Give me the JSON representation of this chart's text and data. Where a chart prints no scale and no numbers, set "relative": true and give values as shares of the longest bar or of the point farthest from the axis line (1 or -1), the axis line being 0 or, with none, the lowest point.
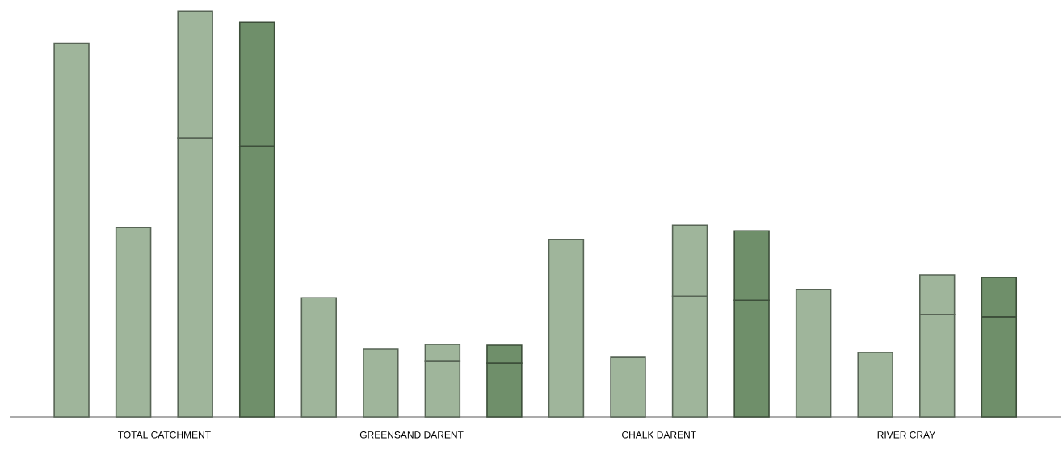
{
  "chart_data": {
    "type": "bar",
    "relative": true,
    "stacked": true,
    "categories": [
      null,
      null,
      null,
      null,
      null,
      null,
      null,
      null,
      null,
      null,
      null,
      null,
      null,
      null,
      null,
      null
    ],
    "annotations": [
      "TOTAL  CATCHMENT",
      "GREENSAND  DARENT",
      "CHALK  DARENT",
      "RIVER  CRAY"
    ],
    "series": [
      {
        "colors": [
          "#9fb59b",
          "#9fb59b",
          "#9fb59b",
          "#6f8f6a",
          "#9fb59b",
          "#9fb59b",
          "#9fb59b",
          "#6f8f6a",
          "#9fb59b",
          "#9fb59b",
          "#9fb59b",
          "#6f8f6a",
          "#9fb59b",
          "#9fb59b",
          "#9fb59b",
          "#6f8f6a"
        ],
        "values": [
          0.922,
          0.467,
          0.688,
          0.668,
          0.294,
          0.167,
          0.137,
          0.133,
          0.437,
          0.147,
          0.298,
          0.288,
          0.314,
          0.159,
          0.252,
          0.247
        ]
      },
      {
        "colors": [
          "#9fb59b",
          "#9fb59b",
          "#9fb59b",
          "#6f8f6a",
          "#9fb59b",
          "#9fb59b",
          "#9fb59b",
          "#6f8f6a",
          "#9fb59b",
          "#9fb59b",
          "#9fb59b",
          "#6f8f6a",
          "#9fb59b",
          "#9fb59b",
          "#9fb59b",
          "#6f8f6a"
        ],
        "values": [
          null,
          null,
          0.312,
          0.306,
          null,
          null,
          0.042,
          0.044,
          null,
          null,
          0.175,
          0.171,
          null,
          null,
          0.098,
          0.097
        ]
      }
    ]
  }
}
